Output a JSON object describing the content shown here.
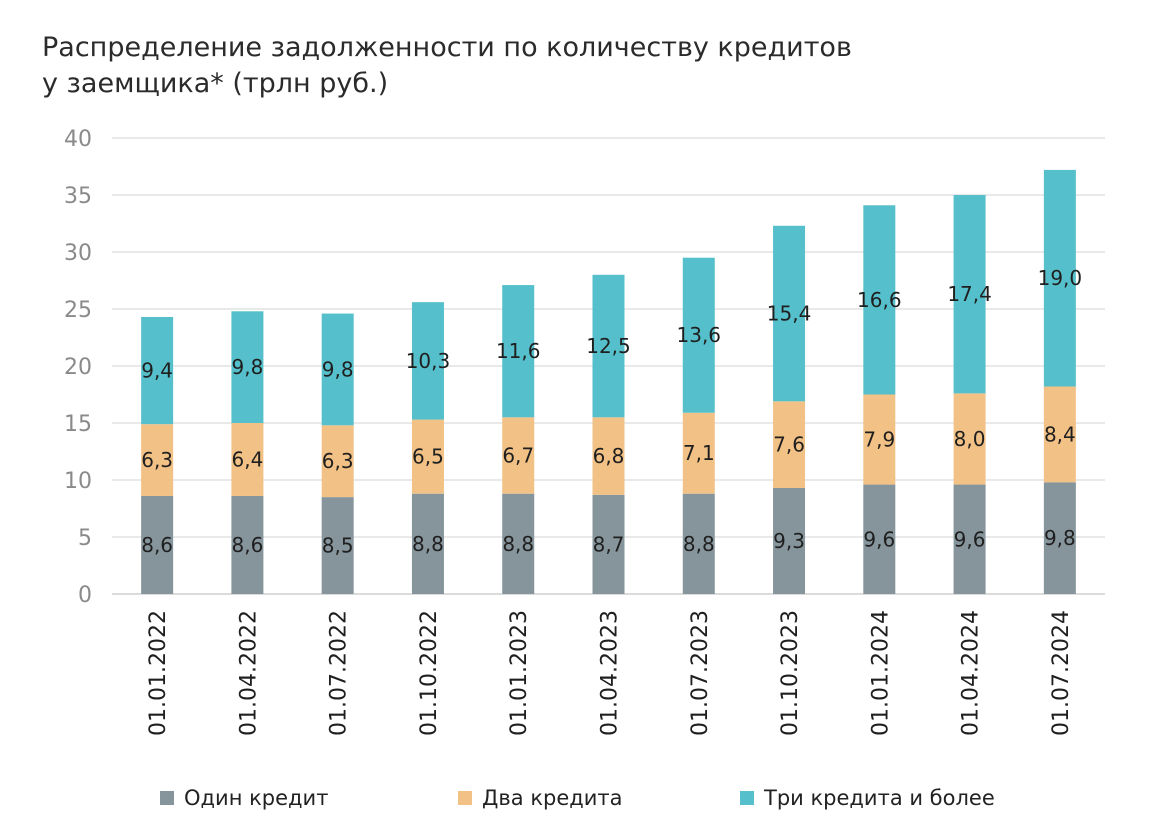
{
  "title_lines": [
    "Распределение задолженности по количеству кредитов",
    "у заемщика* (трлн руб.)"
  ],
  "chart_data": {
    "type": "bar",
    "stacked": true,
    "title": "Распределение задолженности по количеству кредитов у заемщика* (трлн руб.)",
    "categories": [
      "01.01.2022",
      "01.04.2022",
      "01.07.2022",
      "01.10.2022",
      "01.01.2023",
      "01.04.2023",
      "01.07.2023",
      "01.10.2023",
      "01.01.2024",
      "01.04.2024",
      "01.07.2024"
    ],
    "series": [
      {
        "name": "Один кредит",
        "color": "#86959c",
        "values": [
          8.6,
          8.6,
          8.5,
          8.8,
          8.8,
          8.7,
          8.8,
          9.3,
          9.6,
          9.6,
          9.8
        ],
        "labels": [
          "8,6",
          "8,6",
          "8,5",
          "8,8",
          "8,8",
          "8,7",
          "8,8",
          "9,3",
          "9,6",
          "9,6",
          "9,8"
        ]
      },
      {
        "name": "Два кредита",
        "color": "#f2c185",
        "values": [
          6.3,
          6.4,
          6.3,
          6.5,
          6.7,
          6.8,
          7.1,
          7.6,
          7.9,
          8.0,
          8.4
        ],
        "labels": [
          "6,3",
          "6,4",
          "6,3",
          "6,5",
          "6,7",
          "6,8",
          "7,1",
          "7,6",
          "7,9",
          "8,0",
          "8,4"
        ]
      },
      {
        "name": "Три кредита и более",
        "color": "#55c0cb",
        "values": [
          9.4,
          9.8,
          9.8,
          10.3,
          11.6,
          12.5,
          13.6,
          15.4,
          16.6,
          17.4,
          19.0
        ],
        "labels": [
          "9,4",
          "9,8",
          "9,8",
          "10,3",
          "11,6",
          "12,5",
          "13,6",
          "15,4",
          "16,6",
          "17,4",
          "19,0"
        ]
      }
    ],
    "ylim": [
      0,
      40
    ],
    "yticks": [
      "0",
      "5",
      "10",
      "15",
      "20",
      "25",
      "30",
      "35",
      "40"
    ],
    "grid": true,
    "legend": "bottom"
  }
}
